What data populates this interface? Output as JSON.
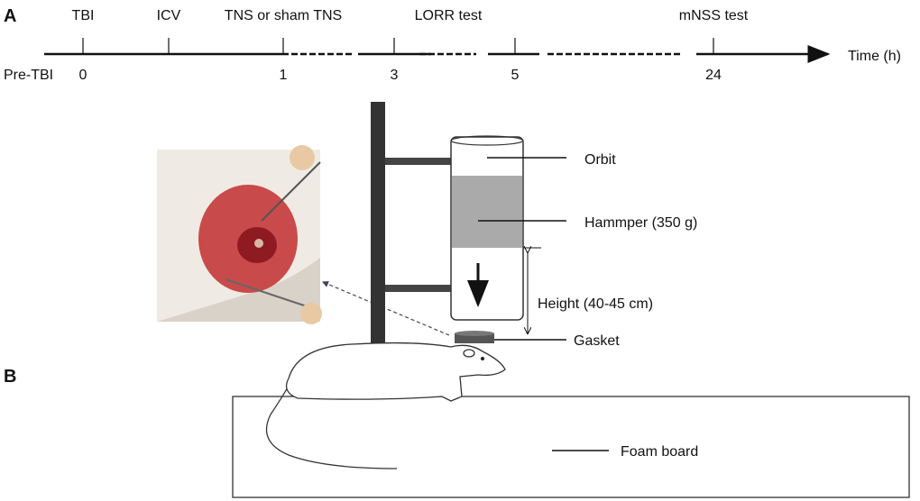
{
  "panel_a": {
    "label": "A",
    "events": [
      "TBI",
      "ICV",
      "TNS or sham TNS",
      "LORR test",
      "mNSS test"
    ],
    "times": [
      "Pre-TBI",
      "0",
      "1",
      "3",
      "5",
      "24"
    ],
    "axis_label": "Time (h)"
  },
  "panel_b": {
    "label": "B",
    "labels": {
      "orbit": "Orbit",
      "hammer": "Hammper (350 g)",
      "height": "Height (40-45 cm)",
      "gasket": "Gasket",
      "foam": "Foam board"
    }
  }
}
